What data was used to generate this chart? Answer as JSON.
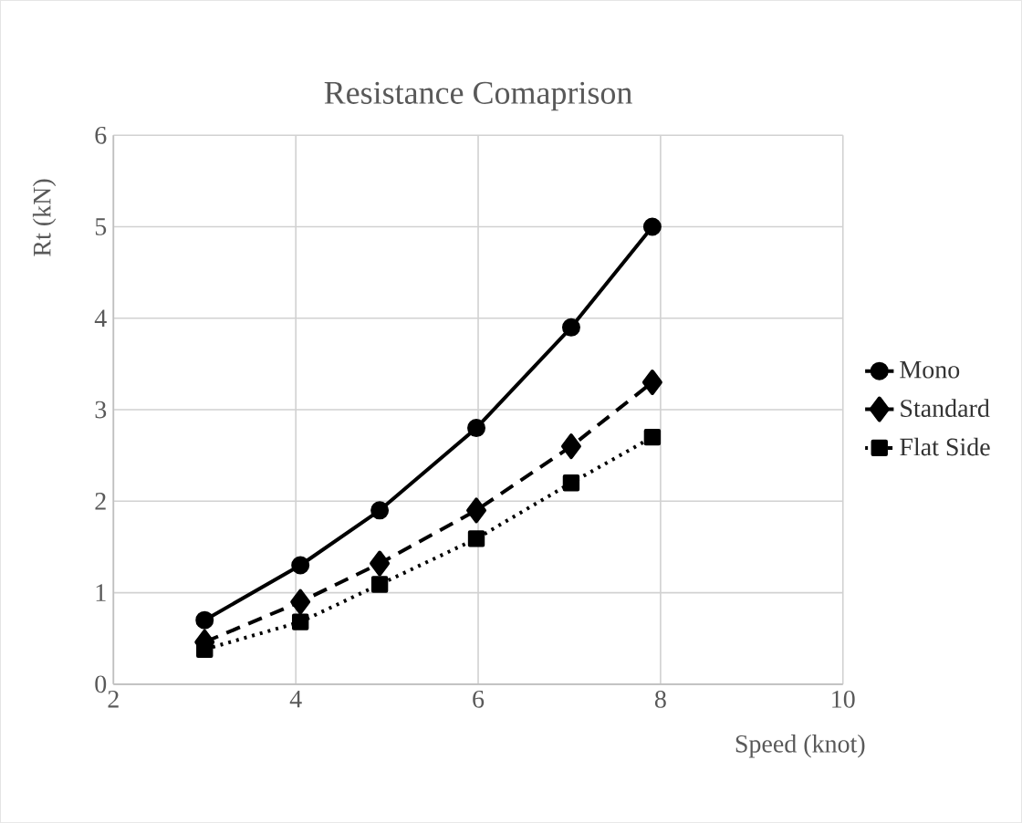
{
  "chart_data": {
    "type": "line",
    "title": "Resistance Comaprison",
    "xlabel": "Speed (knot)",
    "ylabel": "Rt (kN)",
    "x": [
      3,
      4.05,
      4.92,
      5.98,
      7.02,
      7.91
    ],
    "series": [
      {
        "name": "Mono",
        "color": "#000000",
        "values": [
          0.7,
          1.3,
          1.9,
          2.8,
          3.9,
          5.0
        ],
        "marker": "circle",
        "line_style": "solid"
      },
      {
        "name": "Standard",
        "color": "#000000",
        "values": [
          0.46,
          0.9,
          1.32,
          1.9,
          2.6,
          3.3
        ],
        "marker": "diamond",
        "line_style": "dashed"
      },
      {
        "name": "Flat Side",
        "color": "#000000",
        "values": [
          0.38,
          0.68,
          1.09,
          1.59,
          2.2,
          2.7
        ],
        "marker": "square",
        "line_style": "dotted"
      }
    ],
    "xlim": [
      2,
      10
    ],
    "ylim": [
      0,
      6
    ],
    "xticks": [
      2,
      4,
      6,
      8,
      10
    ],
    "yticks": [
      0,
      1,
      2,
      3,
      4,
      5,
      6
    ],
    "grid": true,
    "legend": "right"
  }
}
